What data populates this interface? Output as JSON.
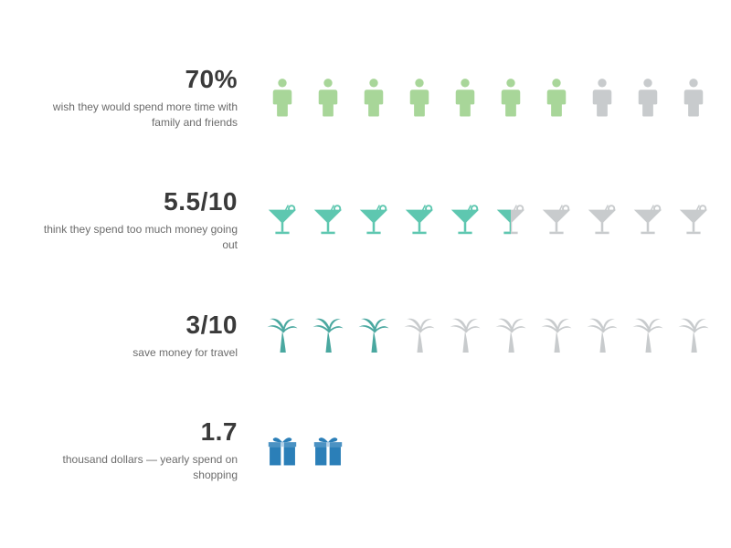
{
  "background_color": "#ffffff",
  "stat_color": "#3a3a3a",
  "desc_color": "#6b6b6b",
  "inactive_color": "#c8cbcd",
  "stat_fontsize": 28,
  "desc_fontsize": 12,
  "icon_count_per_row": 10,
  "rows": [
    {
      "id": "family",
      "stat": "70%",
      "desc": "wish they would spend more time with family and friends",
      "icon": "person",
      "filled": 7,
      "partial": 0,
      "active_color": "#a8d699"
    },
    {
      "id": "going-out",
      "stat": "5.5/10",
      "desc": "think they spend too much money going out",
      "icon": "cocktail",
      "filled": 5,
      "partial": 0.5,
      "active_color": "#5ec7b0"
    },
    {
      "id": "travel",
      "stat": "3/10",
      "desc": "save money for travel",
      "icon": "palm",
      "filled": 3,
      "partial": 0,
      "active_color": "#4aa8a0"
    },
    {
      "id": "shopping",
      "stat": "1.7",
      "desc": "thousand dollars — yearly spend on shopping",
      "icon": "gift",
      "filled": 2,
      "partial": 0,
      "total": 2,
      "active_color": "#2b7fb8"
    }
  ]
}
